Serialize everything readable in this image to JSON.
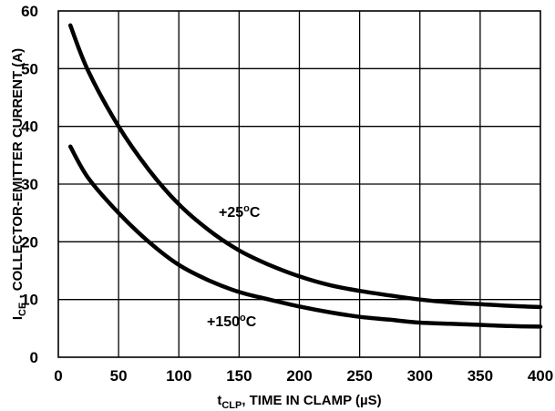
{
  "chart_data": {
    "type": "line",
    "xlabel_main": "t",
    "xlabel_sub": "CLP",
    "xlabel_rest": ", TIME IN CLAMP (µS)",
    "ylabel_main": "I",
    "ylabel_sub": "CE",
    "ylabel_rest": " , COLLECTOR-EMITTER CURRENT (A)",
    "xlim": [
      0,
      400
    ],
    "ylim": [
      0,
      60
    ],
    "xticks": [
      0,
      50,
      100,
      150,
      200,
      250,
      300,
      350,
      400
    ],
    "yticks": [
      0,
      10,
      20,
      30,
      40,
      50,
      60
    ],
    "grid": true,
    "series": [
      {
        "name": "+25°C",
        "label_main": "+25",
        "label_sup": "o",
        "label_unit": "C",
        "x": [
          10,
          25,
          50,
          75,
          100,
          125,
          150,
          175,
          200,
          225,
          250,
          275,
          300,
          325,
          350,
          375,
          400
        ],
        "y": [
          57.5,
          49.5,
          40,
          32.5,
          26.5,
          22,
          18.5,
          16,
          14,
          12.5,
          11.5,
          10.7,
          10,
          9.5,
          9.2,
          8.9,
          8.7
        ]
      },
      {
        "name": "+150°C",
        "label_main": "+150",
        "label_sup": "o",
        "label_unit": "C",
        "x": [
          10,
          25,
          50,
          75,
          100,
          125,
          150,
          175,
          200,
          225,
          250,
          275,
          300,
          325,
          350,
          375,
          400
        ],
        "y": [
          36.5,
          31,
          25,
          20,
          16,
          13.3,
          11.3,
          10,
          8.8,
          7.8,
          7,
          6.5,
          6,
          5.8,
          5.6,
          5.4,
          5.3
        ]
      }
    ]
  }
}
